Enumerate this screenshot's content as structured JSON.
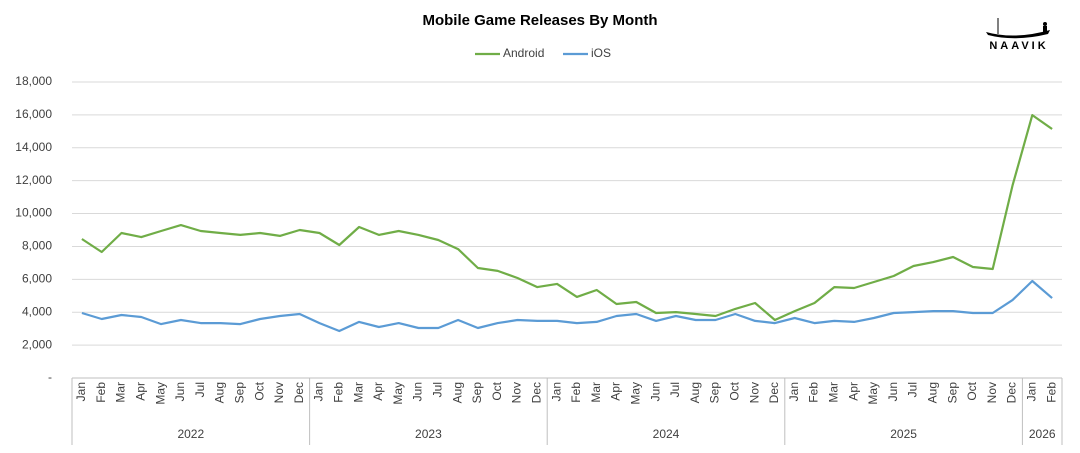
{
  "chart_data": {
    "type": "line",
    "title": "Mobile Game Releases By Month",
    "logo": "NAAVIK",
    "categories": [
      "Jan",
      "Feb",
      "Mar",
      "Apr",
      "May",
      "Jun",
      "Jul",
      "Aug",
      "Sep",
      "Oct",
      "Nov",
      "Dec",
      "Jan",
      "Feb",
      "Mar",
      "Apr",
      "May",
      "Jun",
      "Jul",
      "Aug",
      "Sep",
      "Oct",
      "Nov",
      "Dec",
      "Jan",
      "Feb",
      "Mar",
      "Apr",
      "May",
      "Jun",
      "Jul",
      "Aug",
      "Sep",
      "Oct",
      "Nov",
      "Dec",
      "Jan",
      "Feb",
      "Mar",
      "Apr",
      "May",
      "Jun",
      "Jul",
      "Aug",
      "Sep",
      "Oct",
      "Nov",
      "Dec",
      "Jan",
      "Feb"
    ],
    "groups": [
      {
        "label": "2022",
        "span": 12
      },
      {
        "label": "2023",
        "span": 12
      },
      {
        "label": "2024",
        "span": 12
      },
      {
        "label": "2025",
        "span": 12
      },
      {
        "label": "2026",
        "span": 2
      }
    ],
    "series": [
      {
        "name": "Android",
        "color": "#70ad47",
        "values": [
          8450,
          7660,
          8820,
          8570,
          8940,
          9300,
          8940,
          8820,
          8700,
          8820,
          8640,
          9000,
          8820,
          8090,
          9180,
          8700,
          8940,
          8700,
          8390,
          7840,
          6690,
          6510,
          6080,
          5530,
          5720,
          4930,
          5350,
          4500,
          4620,
          3950,
          4010,
          3890,
          3770,
          4200,
          4560,
          3530,
          4070,
          4560,
          5530,
          5470,
          5840,
          6200,
          6810,
          7050,
          7360,
          6750,
          6630,
          11700,
          15990,
          15140
        ]
      },
      {
        "name": "iOS",
        "color": "#5b9bd5",
        "values": [
          3950,
          3590,
          3830,
          3710,
          3280,
          3530,
          3340,
          3340,
          3280,
          3590,
          3770,
          3890,
          3340,
          2860,
          3410,
          3100,
          3340,
          3040,
          3040,
          3530,
          3040,
          3340,
          3530,
          3470,
          3470,
          3340,
          3410,
          3770,
          3890,
          3470,
          3770,
          3530,
          3530,
          3890,
          3470,
          3340,
          3650,
          3340,
          3470,
          3410,
          3650,
          3950,
          4010,
          4070,
          4070,
          3950,
          3950,
          4740,
          5900,
          4860
        ]
      }
    ],
    "ylim": [
      0,
      18000
    ],
    "yticks": [
      {
        "value": 0,
        "label": "-"
      },
      {
        "value": 2000,
        "label": "2,000"
      },
      {
        "value": 4000,
        "label": "4,000"
      },
      {
        "value": 6000,
        "label": "6,000"
      },
      {
        "value": 8000,
        "label": "8,000"
      },
      {
        "value": 10000,
        "label": "10,000"
      },
      {
        "value": 12000,
        "label": "12,000"
      },
      {
        "value": 14000,
        "label": "14,000"
      },
      {
        "value": 16000,
        "label": "16,000"
      },
      {
        "value": 18000,
        "label": "18,000"
      }
    ],
    "grid": true
  }
}
